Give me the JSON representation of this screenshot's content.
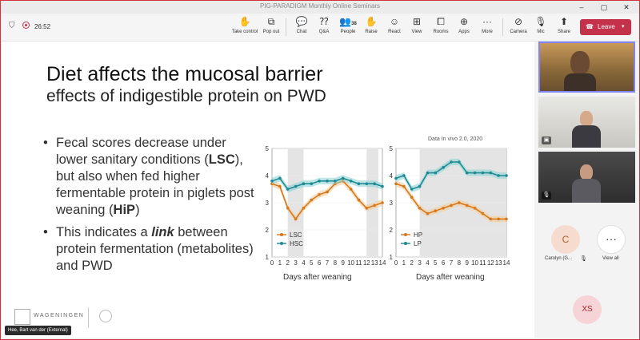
{
  "window": {
    "title": "PIG-PARADIGM Monthly Online Seminars"
  },
  "meeting": {
    "timer": "26:52"
  },
  "toolbar": {
    "items": [
      {
        "label": "Take control",
        "icon": "take-control-icon"
      },
      {
        "label": "Pop out",
        "icon": "pop-out-icon"
      },
      {
        "label": "Chat",
        "icon": "chat-icon"
      },
      {
        "label": "Q&A",
        "icon": "qa-icon"
      },
      {
        "label": "People",
        "icon": "people-icon",
        "badge": "38"
      },
      {
        "label": "Raise",
        "icon": "raise-hand-icon"
      },
      {
        "label": "React",
        "icon": "react-icon"
      },
      {
        "label": "View",
        "icon": "view-icon"
      },
      {
        "label": "Rooms",
        "icon": "rooms-icon"
      },
      {
        "label": "Apps",
        "icon": "apps-icon"
      },
      {
        "label": "More",
        "icon": "more-icon"
      },
      {
        "label": "Camera",
        "icon": "camera-icon"
      },
      {
        "label": "Mic",
        "icon": "mic-icon"
      },
      {
        "label": "Share",
        "icon": "share-icon"
      }
    ],
    "leave_label": "Leave"
  },
  "slide": {
    "title": "Diet affects the mucosal barrier",
    "subtitle": "effects of indigestible protein on PWD",
    "bullets": [
      {
        "pre": "Fecal scores decrease under lower sanitary conditions (",
        "b1": "LSC",
        "mid": "), but also when fed higher fermentable protein in piglets post weaning (",
        "b2": "HiP",
        "post": ")"
      },
      {
        "pre": "This indicates a ",
        "em": "link",
        "post": " between protein fermentation (metabolites) and PWD"
      }
    ],
    "credit": "Data In vivo 2.0, 2020",
    "logo_text": "WAGENINGEN"
  },
  "chart_data": [
    {
      "type": "line",
      "xlabel": "Days after weaning",
      "ylabel": "",
      "x": [
        0,
        1,
        2,
        3,
        4,
        5,
        6,
        7,
        8,
        9,
        10,
        11,
        12,
        13,
        14
      ],
      "xlim": [
        0,
        14
      ],
      "ylim": [
        1,
        5
      ],
      "yticks": [
        1,
        2,
        3,
        4,
        5
      ],
      "shaded_ranges": [
        [
          2,
          4
        ],
        [
          12,
          13.5
        ]
      ],
      "legend": "bottom-left",
      "series": [
        {
          "name": "LSC",
          "color": "#d4781e",
          "band": "#f3cf9f",
          "x": [
            0,
            1,
            2,
            3,
            4,
            5,
            6,
            7,
            8,
            9,
            10,
            11,
            12,
            13,
            14
          ],
          "y": [
            3.7,
            3.6,
            2.8,
            2.4,
            2.8,
            3.1,
            3.3,
            3.4,
            3.7,
            3.8,
            3.5,
            3.1,
            2.8,
            2.9,
            3.0
          ]
        },
        {
          "name": "HSC",
          "color": "#1f8a92",
          "band": "#8fd3d6",
          "x": [
            0,
            1,
            2,
            3,
            4,
            5,
            6,
            7,
            8,
            9,
            10,
            11,
            12,
            13,
            14
          ],
          "y": [
            3.8,
            3.9,
            3.5,
            3.6,
            3.7,
            3.7,
            3.8,
            3.8,
            3.8,
            3.9,
            3.8,
            3.7,
            3.7,
            3.7,
            3.6
          ]
        }
      ]
    },
    {
      "type": "line",
      "xlabel": "Days after weaning",
      "ylabel": "",
      "x": [
        0,
        1,
        2,
        3,
        4,
        5,
        6,
        7,
        8,
        9,
        10,
        11,
        12,
        13,
        14
      ],
      "xlim": [
        0,
        14
      ],
      "ylim": [
        1,
        5
      ],
      "yticks": [
        1,
        2,
        3,
        4,
        5
      ],
      "shaded_ranges": [
        [
          3,
          14
        ]
      ],
      "legend": "bottom-left",
      "series": [
        {
          "name": "HP",
          "color": "#d4781e",
          "band": "#f3cf9f",
          "x": [
            0,
            1,
            2,
            3,
            4,
            5,
            6,
            7,
            8,
            9,
            10,
            11,
            12,
            13,
            14
          ],
          "y": [
            3.7,
            3.6,
            3.2,
            2.8,
            2.6,
            2.7,
            2.8,
            2.9,
            3.0,
            2.9,
            2.8,
            2.6,
            2.4,
            2.4,
            2.4
          ]
        },
        {
          "name": "LP",
          "color": "#1f8a92",
          "band": "#8fd3d6",
          "x": [
            0,
            1,
            2,
            3,
            4,
            5,
            6,
            7,
            8,
            9,
            10,
            11,
            12,
            13,
            14
          ],
          "y": [
            3.9,
            4.0,
            3.5,
            3.6,
            4.1,
            4.1,
            4.3,
            4.5,
            4.5,
            4.1,
            4.1,
            4.1,
            4.1,
            4.0,
            4.0
          ]
        }
      ]
    }
  ],
  "participants": {
    "carolyn_initial": "C",
    "carolyn_name": "Carolyn (G...",
    "view_all_label": "View all",
    "xs_initials": "XS",
    "speaker": "Hee, Bart van der (External)"
  }
}
